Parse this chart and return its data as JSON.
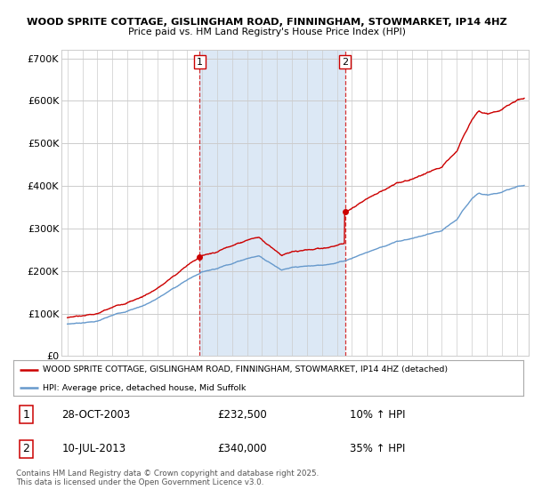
{
  "title1": "WOOD SPRITE COTTAGE, GISLINGHAM ROAD, FINNINGHAM, STOWMARKET, IP14 4HZ",
  "title2": "Price paid vs. HM Land Registry's House Price Index (HPI)",
  "ylim": [
    0,
    720000
  ],
  "yticks": [
    0,
    100000,
    200000,
    300000,
    400000,
    500000,
    600000,
    700000
  ],
  "ytick_labels": [
    "£0",
    "£100K",
    "£200K",
    "£300K",
    "£400K",
    "£500K",
    "£600K",
    "£700K"
  ],
  "background_color": "#ffffff",
  "plot_bg_color": "#ffffff",
  "grid_color": "#cccccc",
  "shade_color": "#dce8f5",
  "sale1_date": 2003.83,
  "sale1_price": 232500,
  "sale2_date": 2013.53,
  "sale2_price": 340000,
  "legend_line1": "WOOD SPRITE COTTAGE, GISLINGHAM ROAD, FINNINGHAM, STOWMARKET, IP14 4HZ (detached)",
  "legend_line2": "HPI: Average price, detached house, Mid Suffolk",
  "annotation1_date": "28-OCT-2003",
  "annotation1_price": "£232,500",
  "annotation1_hpi": "10% ↑ HPI",
  "annotation2_date": "10-JUL-2013",
  "annotation2_price": "£340,000",
  "annotation2_hpi": "35% ↑ HPI",
  "footer": "Contains HM Land Registry data © Crown copyright and database right 2025.\nThis data is licensed under the Open Government Licence v3.0.",
  "red_color": "#cc0000",
  "blue_color": "#6699cc",
  "vline_color": "#cc0000",
  "xlim_left": 1994.6,
  "xlim_right": 2025.8
}
